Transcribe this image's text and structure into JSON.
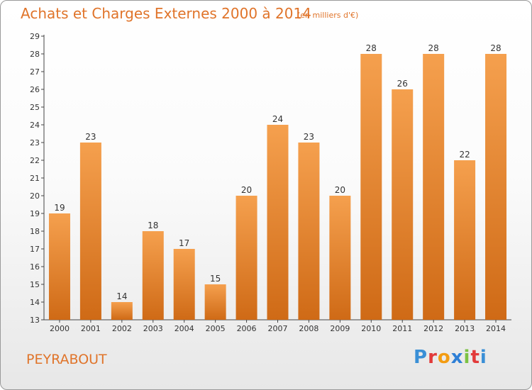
{
  "chart_data": {
    "type": "bar",
    "title": "Achats et Charges Externes 2000 à 2014",
    "subtitle": "(en milliers d'€)",
    "categories": [
      "2000",
      "2001",
      "2002",
      "2003",
      "2004",
      "2005",
      "2006",
      "2007",
      "2008",
      "2009",
      "2010",
      "2011",
      "2012",
      "2013",
      "2014"
    ],
    "values": [
      19,
      23,
      14,
      18,
      17,
      15,
      20,
      24,
      23,
      20,
      28,
      26,
      28,
      22,
      28
    ],
    "ylim": [
      13,
      29
    ],
    "yticks": [
      13,
      14,
      15,
      16,
      17,
      18,
      19,
      20,
      21,
      22,
      23,
      24,
      25,
      26,
      27,
      28,
      29
    ],
    "grid": false,
    "bar_color": "#f0913a"
  },
  "location": "PEYRABOUT",
  "logo": {
    "text": "Proxiti",
    "letter_colors": [
      "#3a8fd6",
      "#e23a3a",
      "#f39c12",
      "#2e7fd6",
      "#7cc243",
      "#e23a3a",
      "#3a8fd6"
    ]
  }
}
